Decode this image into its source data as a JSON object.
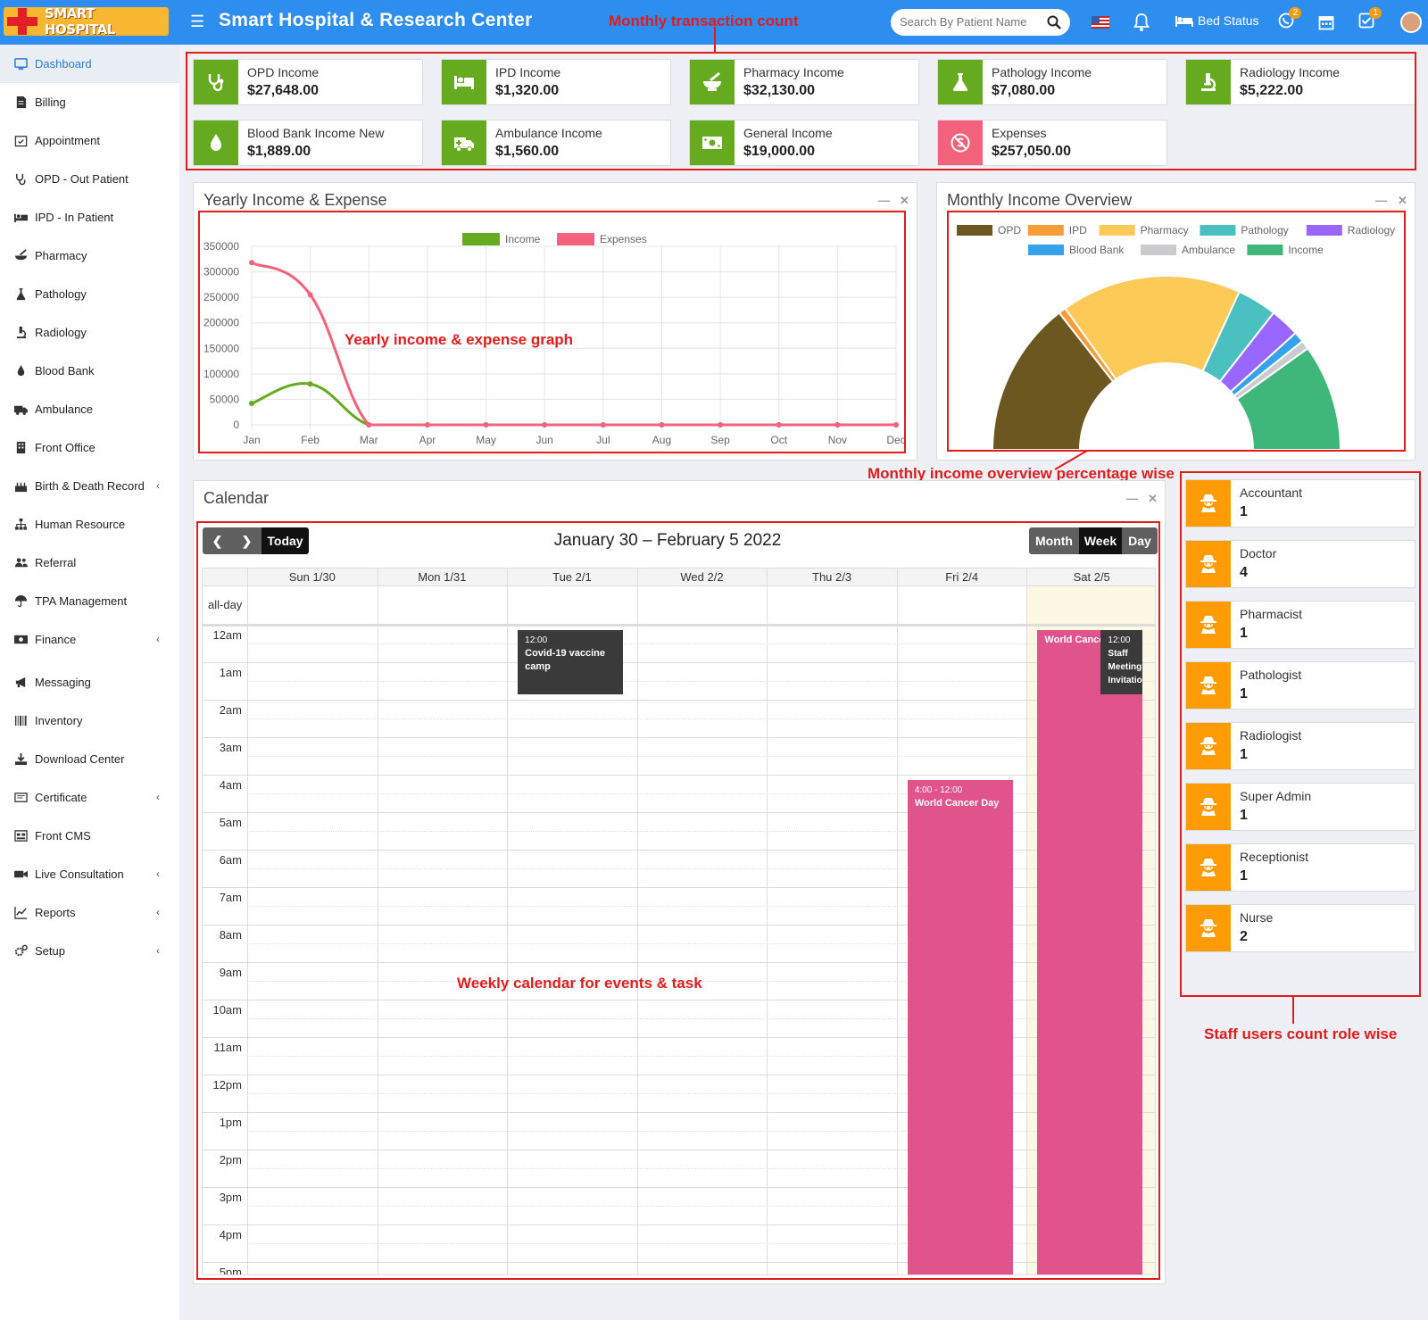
{
  "app": {
    "logo_text": "SMART HOSPITAL",
    "title": "Smart Hospital & Research Center",
    "search_placeholder": "Search By Patient Name",
    "bed_status": "Bed Status",
    "whatsapp_badge": "2",
    "tasks_badge": "1"
  },
  "sidebar": {
    "items": [
      {
        "label": "Dashboard",
        "icon": "monitor-icon",
        "active": true
      },
      {
        "label": "Billing",
        "icon": "billing-icon"
      },
      {
        "label": "Appointment",
        "icon": "calendar-check-icon"
      },
      {
        "label": "OPD - Out Patient",
        "icon": "stethoscope-icon"
      },
      {
        "label": "IPD - In Patient",
        "icon": "bed-icon"
      },
      {
        "label": "Pharmacy",
        "icon": "mortar-pestle-icon"
      },
      {
        "label": "Pathology",
        "icon": "flask-icon"
      },
      {
        "label": "Radiology",
        "icon": "microscope-icon"
      },
      {
        "label": "Blood Bank",
        "icon": "droplet-icon"
      },
      {
        "label": "Ambulance",
        "icon": "ambulance-icon"
      },
      {
        "label": "Front Office",
        "icon": "building-icon"
      },
      {
        "label": "Birth & Death Record",
        "icon": "birthday-cake-icon",
        "arrow": true
      },
      {
        "label": "Human Resource",
        "icon": "sitemap-icon"
      },
      {
        "label": "Referral",
        "icon": "users-icon"
      },
      {
        "label": "TPA Management",
        "icon": "umbrella-icon"
      },
      {
        "label": "Finance",
        "icon": "money-icon",
        "arrow": true
      },
      {
        "label": "Messaging",
        "icon": "bullhorn-icon"
      },
      {
        "label": "Inventory",
        "icon": "barcode-icon"
      },
      {
        "label": "Download Center",
        "icon": "download-icon"
      },
      {
        "label": "Certificate",
        "icon": "certificate-icon",
        "arrow": true
      },
      {
        "label": "Front CMS",
        "icon": "cms-icon"
      },
      {
        "label": "Live Consultation",
        "icon": "video-icon",
        "arrow": true
      },
      {
        "label": "Reports",
        "icon": "line-chart-icon",
        "arrow": true
      },
      {
        "label": "Setup",
        "icon": "gears-icon",
        "arrow": true
      }
    ]
  },
  "income_cards": [
    {
      "label": "OPD Income",
      "value": "$27,648.00",
      "icon": "stethoscope-icon"
    },
    {
      "label": "IPD Income",
      "value": "$1,320.00",
      "icon": "bed-icon"
    },
    {
      "label": "Pharmacy Income",
      "value": "$32,130.00",
      "icon": "mortar-pestle-icon"
    },
    {
      "label": "Pathology Income",
      "value": "$7,080.00",
      "icon": "flask-icon"
    },
    {
      "label": "Radiology Income",
      "value": "$5,222.00",
      "icon": "microscope-icon"
    },
    {
      "label": "Blood Bank Income New",
      "value": "$1,889.00",
      "icon": "droplet-icon"
    },
    {
      "label": "Ambulance Income",
      "value": "$1,560.00",
      "icon": "ambulance-icon"
    },
    {
      "label": "General Income",
      "value": "$19,000.00",
      "icon": "money-icon"
    },
    {
      "label": "Expenses",
      "value": "$257,050.00",
      "icon": "no-money-icon",
      "color": "#f2637b"
    }
  ],
  "annotations": {
    "monthly_transaction": "Monthly transaction count",
    "yearly_graph": "Yearly income & expense graph",
    "monthly_overview": "Monthly income overview percentage wise",
    "weekly_calendar": "Weekly calendar for events & task",
    "staff_count": "Staff users count role wise"
  },
  "panels": {
    "yearly": "Yearly Income & Expense",
    "monthly": "Monthly Income Overview",
    "calendar": "Calendar"
  },
  "chart_data": [
    {
      "type": "line",
      "title": "Yearly Income & Expense",
      "categories": [
        "Jan",
        "Feb",
        "Mar",
        "Apr",
        "May",
        "Jun",
        "Jul",
        "Aug",
        "Sep",
        "Oct",
        "Nov",
        "Dec"
      ],
      "ylim": [
        0,
        350000
      ],
      "yticks": [
        "350000",
        "300000",
        "250000",
        "200000",
        "150000",
        "100000",
        "50000",
        "0"
      ],
      "series": [
        {
          "name": "Income",
          "color": "#66aa1f",
          "values": [
            42000,
            80000,
            0,
            0,
            0,
            0,
            0,
            0,
            0,
            0,
            0,
            0
          ]
        },
        {
          "name": "Expenses",
          "color": "#f2637b",
          "values": [
            318000,
            255000,
            0,
            0,
            0,
            0,
            0,
            0,
            0,
            0,
            0,
            0
          ]
        }
      ]
    },
    {
      "type": "pie",
      "variant": "half-doughnut",
      "title": "Monthly Income Overview",
      "labels": [
        "OPD",
        "IPD",
        "Pharmacy",
        "Pathology",
        "Radiology",
        "Blood Bank",
        "Ambulance",
        "Income"
      ],
      "colors": [
        "#6d5720",
        "#f89c3a",
        "#fdca57",
        "#4bc0c0",
        "#9966ff",
        "#36a2eb",
        "#c9cbcf",
        "#3fb77a"
      ],
      "values": [
        27648,
        1320,
        32130,
        7080,
        5222,
        1889,
        1560,
        19000
      ]
    }
  ],
  "calendar": {
    "range": "January 30 – February 5 2022",
    "today": "Today",
    "views": [
      "Month",
      "Week",
      "Day"
    ],
    "active_view": "Week",
    "days": [
      "Sun 1/30",
      "Mon 1/31",
      "Tue 2/1",
      "Wed 2/2",
      "Thu 2/3",
      "Fri 2/4",
      "Sat 2/5"
    ],
    "allday": "all-day",
    "times": [
      "12am",
      "1am",
      "2am",
      "3am",
      "4am",
      "5am",
      "6am",
      "7am",
      "8am",
      "9am",
      "10am",
      "11am",
      "12pm",
      "1pm",
      "2pm",
      "3pm",
      "4pm",
      "5pm"
    ],
    "events": [
      {
        "time": "12:00",
        "title": "Covid-19 vaccine camp"
      },
      {
        "time": "4:00 - 12:00",
        "title": "World Cancer Day"
      },
      {
        "time": "",
        "title": "World Cancer Day"
      },
      {
        "time": "12:00",
        "title": "Staff Meeting Invitation"
      }
    ]
  },
  "staff": [
    {
      "role": "Accountant",
      "count": "1"
    },
    {
      "role": "Doctor",
      "count": "4"
    },
    {
      "role": "Pharmacist",
      "count": "1"
    },
    {
      "role": "Pathologist",
      "count": "1"
    },
    {
      "role": "Radiologist",
      "count": "1"
    },
    {
      "role": "Super Admin",
      "count": "1"
    },
    {
      "role": "Receptionist",
      "count": "1"
    },
    {
      "role": "Nurse",
      "count": "2"
    }
  ]
}
